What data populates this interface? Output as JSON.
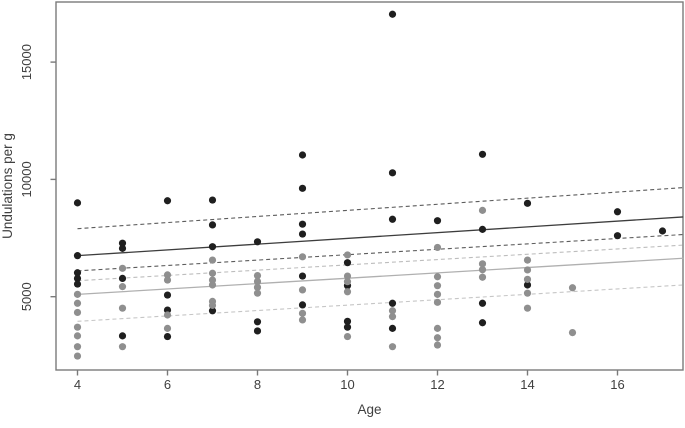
{
  "chart_data": {
    "type": "scatter",
    "title": "",
    "xlabel": "Age",
    "ylabel": "Undulations per g",
    "xlim": [
      3.5,
      17.46
    ],
    "ylim": [
      1876,
      17558
    ],
    "grid": false,
    "x_ticks": [
      4,
      6,
      8,
      10,
      12,
      14,
      16
    ],
    "y_ticks": [
      5000,
      10000,
      15000
    ],
    "series": [
      {
        "name": "black-group-points",
        "color": "#1f1f1f",
        "points": [
          [
            4,
            9000
          ],
          [
            4,
            6750
          ],
          [
            4,
            6020
          ],
          [
            4,
            5780
          ],
          [
            4,
            5540
          ],
          [
            5,
            7280
          ],
          [
            5,
            7060
          ],
          [
            5,
            5780
          ],
          [
            5,
            3330
          ],
          [
            6,
            9090
          ],
          [
            6,
            5070
          ],
          [
            6,
            4430
          ],
          [
            6,
            3300
          ],
          [
            7,
            9120
          ],
          [
            7,
            8060
          ],
          [
            7,
            7130
          ],
          [
            7,
            4400
          ],
          [
            8,
            7340
          ],
          [
            8,
            3930
          ],
          [
            8,
            3540
          ],
          [
            9,
            11040
          ],
          [
            9,
            9620
          ],
          [
            9,
            8090
          ],
          [
            9,
            7670
          ],
          [
            9,
            5880
          ],
          [
            9,
            4650
          ],
          [
            10,
            6450
          ],
          [
            10,
            5470
          ],
          [
            10,
            3950
          ],
          [
            10,
            3700
          ],
          [
            11,
            17040
          ],
          [
            11,
            10280
          ],
          [
            11,
            8300
          ],
          [
            11,
            4720
          ],
          [
            11,
            3650
          ],
          [
            12,
            8240
          ],
          [
            13,
            11070
          ],
          [
            13,
            7870
          ],
          [
            13,
            4720
          ],
          [
            13,
            3890
          ],
          [
            14,
            8980
          ],
          [
            14,
            5500
          ],
          [
            16,
            8620
          ],
          [
            16,
            7600
          ],
          [
            17,
            7800
          ]
        ]
      },
      {
        "name": "gray-group-points",
        "color": "#8f8f8f",
        "points": [
          [
            4,
            5100
          ],
          [
            4,
            4720
          ],
          [
            4,
            4330
          ],
          [
            4,
            3700
          ],
          [
            4,
            3330
          ],
          [
            4,
            2870
          ],
          [
            4,
            2470
          ],
          [
            5,
            6210
          ],
          [
            5,
            5430
          ],
          [
            5,
            4510
          ],
          [
            5,
            2870
          ],
          [
            6,
            5930
          ],
          [
            6,
            5710
          ],
          [
            6,
            4220
          ],
          [
            6,
            3650
          ],
          [
            7,
            6560
          ],
          [
            7,
            6000
          ],
          [
            7,
            5710
          ],
          [
            7,
            5500
          ],
          [
            7,
            4800
          ],
          [
            7,
            4630
          ],
          [
            8,
            5900
          ],
          [
            8,
            5650
          ],
          [
            8,
            5400
          ],
          [
            8,
            5150
          ],
          [
            9,
            6700
          ],
          [
            9,
            5290
          ],
          [
            9,
            4290
          ],
          [
            9,
            4010
          ],
          [
            10,
            6780
          ],
          [
            10,
            5880
          ],
          [
            10,
            5640
          ],
          [
            10,
            5210
          ],
          [
            10,
            3300
          ],
          [
            11,
            4400
          ],
          [
            11,
            4150
          ],
          [
            11,
            2870
          ],
          [
            12,
            7100
          ],
          [
            12,
            5850
          ],
          [
            12,
            5470
          ],
          [
            12,
            5100
          ],
          [
            12,
            4760
          ],
          [
            12,
            3650
          ],
          [
            12,
            3250
          ],
          [
            12,
            2940
          ],
          [
            13,
            8680
          ],
          [
            13,
            6400
          ],
          [
            13,
            6150
          ],
          [
            13,
            5830
          ],
          [
            14,
            6560
          ],
          [
            14,
            6140
          ],
          [
            14,
            5740
          ],
          [
            14,
            5150
          ],
          [
            14,
            4510
          ],
          [
            15,
            5380
          ],
          [
            15,
            3470
          ]
        ]
      }
    ],
    "lines": [
      {
        "name": "black-ci-upper-dashed",
        "style": "dashed",
        "color": "#5c5c5c",
        "x": [
          4,
          17.46
        ],
        "y": [
          7900,
          9650
        ]
      },
      {
        "name": "black-fit-solid",
        "style": "solid",
        "color": "#3d3d3d",
        "x": [
          4,
          17.46
        ],
        "y": [
          6750,
          8400
        ]
      },
      {
        "name": "black-ci-lower-dashed",
        "style": "dashed",
        "color": "#5c5c5c",
        "x": [
          4,
          17.46
        ],
        "y": [
          6100,
          7650
        ]
      },
      {
        "name": "gray-ci-upper-dashed",
        "style": "dashed",
        "color": "#bdbdbd",
        "x": [
          4,
          17.46
        ],
        "y": [
          5680,
          7200
        ]
      },
      {
        "name": "gray-fit-solid",
        "style": "solid",
        "color": "#b0b0b0",
        "x": [
          4,
          17.46
        ],
        "y": [
          5100,
          6640
        ]
      },
      {
        "name": "gray-ci-lower-dashed",
        "style": "dashed",
        "color": "#c6c6c6",
        "x": [
          4,
          17.46
        ],
        "y": [
          3950,
          5500
        ]
      }
    ],
    "axis_color": "#7a7a7a"
  }
}
